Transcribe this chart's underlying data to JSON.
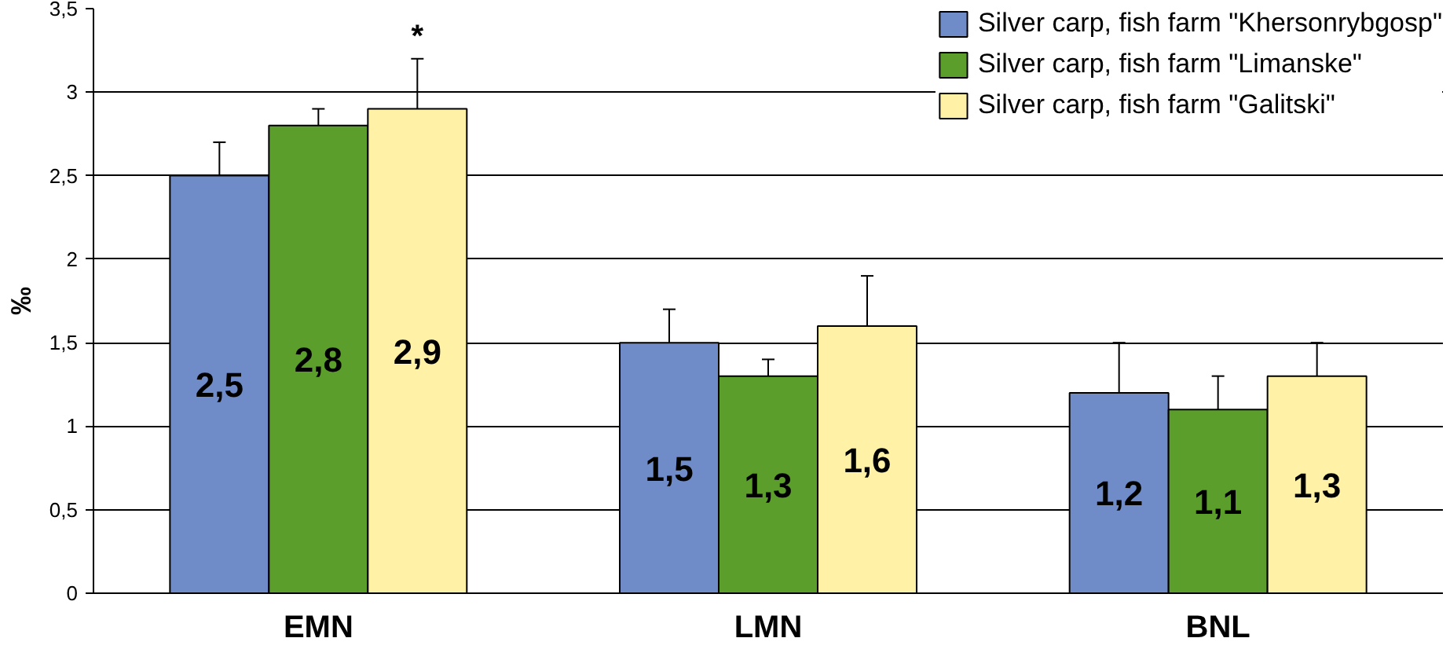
{
  "chart_data": {
    "type": "bar",
    "ylabel": "‰",
    "categories": [
      "EMN",
      "LMN",
      "BNL"
    ],
    "series": [
      {
        "name": "Silver carp, fish farm \"Khersonrybgosp\"",
        "color": "#6f8cc8",
        "values": [
          2.5,
          1.5,
          1.2
        ],
        "errors": [
          0.2,
          0.2,
          0.3
        ],
        "value_labels": [
          "2,5",
          "1,5",
          "1,2"
        ]
      },
      {
        "name": "Silver carp, fish farm \"Limanske\"",
        "color": "#5c9e2c",
        "values": [
          2.8,
          1.3,
          1.1
        ],
        "errors": [
          0.1,
          0.1,
          0.2
        ],
        "value_labels": [
          "2,8",
          "1,3",
          "1,1"
        ]
      },
      {
        "name": "Silver carp, fish farm \"Galitski\"",
        "color": "#fff2a6",
        "values": [
          2.9,
          1.6,
          1.3
        ],
        "errors": [
          0.3,
          0.3,
          0.2
        ],
        "value_labels": [
          "2,9",
          "1,6",
          "1,3"
        ]
      }
    ],
    "ylim": [
      0,
      3.5
    ],
    "yticks": [
      0,
      {
        "value": 0.5,
        "label": "0,5"
      },
      1,
      {
        "value": 1.5,
        "label": "1,5"
      },
      2,
      {
        "value": 2.5,
        "label": "2,5"
      },
      3,
      {
        "value": 3.5,
        "label": "3,5"
      }
    ],
    "grid": "y",
    "legend": "top right",
    "annotations": [
      "*"
    ]
  }
}
